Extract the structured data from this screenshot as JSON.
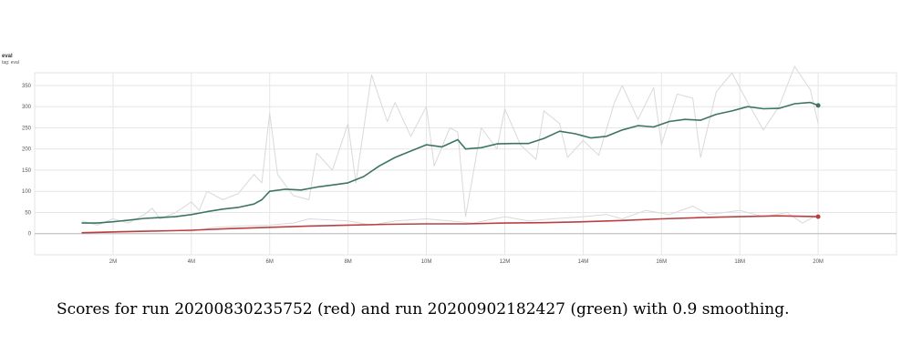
{
  "panel": {
    "title": "eval",
    "tag": "tag: eval"
  },
  "caption": "Scores for run 20200830235752 (red) and  run 20200902182427 (green) with 0.9 smoothing.",
  "colors": {
    "green": "#3d7565",
    "red": "#b8413f",
    "raw": "#d9d9d9",
    "grid": "#e6e6e6"
  },
  "chart_data": {
    "type": "line",
    "xlim": [
      0,
      22
    ],
    "ylim": [
      -50,
      380
    ],
    "x_ticks": [
      {
        "v": 2,
        "label": "2M"
      },
      {
        "v": 4,
        "label": "4M"
      },
      {
        "v": 6,
        "label": "6M"
      },
      {
        "v": 8,
        "label": "8M"
      },
      {
        "v": 10,
        "label": "10M"
      },
      {
        "v": 12,
        "label": "12M"
      },
      {
        "v": 14,
        "label": "14M"
      },
      {
        "v": 16,
        "label": "16M"
      },
      {
        "v": 18,
        "label": "18M"
      },
      {
        "v": 20,
        "label": "20M"
      }
    ],
    "y_ticks": [
      0,
      50,
      100,
      150,
      200,
      250,
      300,
      350
    ],
    "grid": true,
    "series": [
      {
        "color": "green",
        "points": [
          [
            1.2,
            25
          ],
          [
            1.6,
            25
          ],
          [
            2.0,
            28
          ],
          [
            2.4,
            32
          ],
          [
            2.8,
            36
          ],
          [
            3.2,
            38
          ],
          [
            3.6,
            40
          ],
          [
            4.0,
            45
          ],
          [
            4.4,
            52
          ],
          [
            4.8,
            58
          ],
          [
            5.2,
            62
          ],
          [
            5.6,
            70
          ],
          [
            5.8,
            80
          ],
          [
            6.0,
            100
          ],
          [
            6.4,
            105
          ],
          [
            6.8,
            103
          ],
          [
            7.2,
            110
          ],
          [
            7.6,
            115
          ],
          [
            8.0,
            120
          ],
          [
            8.4,
            135
          ],
          [
            8.8,
            160
          ],
          [
            9.2,
            180
          ],
          [
            9.6,
            195
          ],
          [
            10.0,
            210
          ],
          [
            10.4,
            205
          ],
          [
            10.8,
            222
          ],
          [
            11.0,
            200
          ],
          [
            11.4,
            203
          ],
          [
            11.8,
            212
          ],
          [
            12.2,
            213
          ],
          [
            12.6,
            213
          ],
          [
            13.0,
            225
          ],
          [
            13.4,
            242
          ],
          [
            13.8,
            236
          ],
          [
            14.2,
            226
          ],
          [
            14.6,
            230
          ],
          [
            15.0,
            245
          ],
          [
            15.4,
            255
          ],
          [
            15.8,
            252
          ],
          [
            16.2,
            265
          ],
          [
            16.6,
            270
          ],
          [
            17.0,
            268
          ],
          [
            17.4,
            282
          ],
          [
            17.8,
            290
          ],
          [
            18.2,
            300
          ],
          [
            18.6,
            295
          ],
          [
            19.0,
            296
          ],
          [
            19.4,
            307
          ],
          [
            19.8,
            310
          ],
          [
            20.0,
            303
          ]
        ]
      },
      {
        "color": "green",
        "raw": true,
        "points": [
          [
            1.2,
            30
          ],
          [
            1.6,
            20
          ],
          [
            2.0,
            35
          ],
          [
            2.4,
            25
          ],
          [
            2.8,
            45
          ],
          [
            3.0,
            60
          ],
          [
            3.2,
            35
          ],
          [
            3.6,
            50
          ],
          [
            4.0,
            75
          ],
          [
            4.2,
            55
          ],
          [
            4.4,
            100
          ],
          [
            4.8,
            80
          ],
          [
            5.2,
            95
          ],
          [
            5.6,
            140
          ],
          [
            5.8,
            120
          ],
          [
            6.0,
            285
          ],
          [
            6.2,
            140
          ],
          [
            6.6,
            90
          ],
          [
            7.0,
            80
          ],
          [
            7.2,
            190
          ],
          [
            7.6,
            150
          ],
          [
            8.0,
            260
          ],
          [
            8.2,
            120
          ],
          [
            8.6,
            375
          ],
          [
            9.0,
            265
          ],
          [
            9.2,
            310
          ],
          [
            9.6,
            230
          ],
          [
            10.0,
            300
          ],
          [
            10.2,
            160
          ],
          [
            10.6,
            250
          ],
          [
            10.8,
            240
          ],
          [
            11.0,
            40
          ],
          [
            11.4,
            250
          ],
          [
            11.8,
            200
          ],
          [
            12.0,
            295
          ],
          [
            12.4,
            210
          ],
          [
            12.8,
            175
          ],
          [
            13.0,
            290
          ],
          [
            13.4,
            260
          ],
          [
            13.6,
            180
          ],
          [
            14.0,
            220
          ],
          [
            14.4,
            185
          ],
          [
            14.8,
            310
          ],
          [
            15.0,
            350
          ],
          [
            15.4,
            270
          ],
          [
            15.8,
            345
          ],
          [
            16.0,
            210
          ],
          [
            16.4,
            330
          ],
          [
            16.8,
            320
          ],
          [
            17.0,
            180
          ],
          [
            17.4,
            335
          ],
          [
            17.8,
            380
          ],
          [
            18.2,
            310
          ],
          [
            18.6,
            245
          ],
          [
            19.0,
            300
          ],
          [
            19.4,
            395
          ],
          [
            19.8,
            340
          ],
          [
            20.0,
            260
          ]
        ]
      },
      {
        "color": "red",
        "points": [
          [
            1.2,
            2
          ],
          [
            2,
            4
          ],
          [
            3,
            6
          ],
          [
            4,
            8
          ],
          [
            5,
            12
          ],
          [
            6,
            15
          ],
          [
            7,
            18
          ],
          [
            8,
            20
          ],
          [
            9,
            22
          ],
          [
            10,
            23
          ],
          [
            11,
            23
          ],
          [
            12,
            25
          ],
          [
            13,
            26
          ],
          [
            14,
            28
          ],
          [
            15,
            31
          ],
          [
            16,
            35
          ],
          [
            17,
            38
          ],
          [
            18,
            40
          ],
          [
            19,
            42
          ],
          [
            20,
            40
          ]
        ]
      },
      {
        "color": "red",
        "raw": true,
        "points": [
          [
            1.2,
            3
          ],
          [
            2,
            5
          ],
          [
            3,
            8
          ],
          [
            4,
            6
          ],
          [
            4.6,
            15
          ],
          [
            5.2,
            18
          ],
          [
            6,
            20
          ],
          [
            6.6,
            25
          ],
          [
            7,
            35
          ],
          [
            8,
            30
          ],
          [
            8.6,
            20
          ],
          [
            9.2,
            30
          ],
          [
            10,
            35
          ],
          [
            10.6,
            30
          ],
          [
            11.2,
            25
          ],
          [
            12,
            40
          ],
          [
            12.6,
            30
          ],
          [
            13.2,
            35
          ],
          [
            14,
            40
          ],
          [
            14.6,
            45
          ],
          [
            15,
            35
          ],
          [
            15.6,
            55
          ],
          [
            16.2,
            45
          ],
          [
            16.8,
            65
          ],
          [
            17.2,
            45
          ],
          [
            18,
            55
          ],
          [
            18.6,
            40
          ],
          [
            19.2,
            50
          ],
          [
            19.6,
            25
          ],
          [
            20,
            45
          ]
        ]
      }
    ]
  }
}
